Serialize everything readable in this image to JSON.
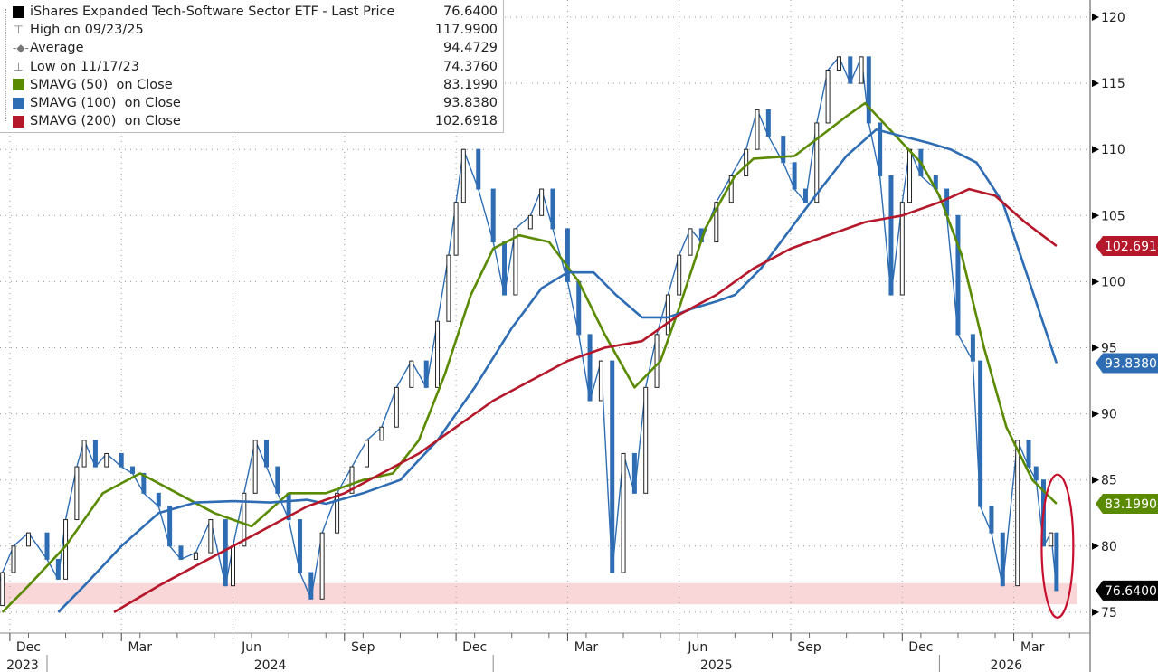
{
  "legend": {
    "rows": [
      {
        "label": "iShares Expanded Tech-Software Sector ETF - Last Price",
        "value": "76.6400",
        "symbol": "square",
        "color": "#000000"
      },
      {
        "label": "High on 09/23/25",
        "value": "117.9900",
        "symbol": "high-marker",
        "color": "#777777"
      },
      {
        "label": "Average",
        "value": "94.4729",
        "symbol": "average-marker",
        "color": "#777777"
      },
      {
        "label": "Low on 11/17/23",
        "value": "74.3760",
        "symbol": "low-marker",
        "color": "#777777"
      },
      {
        "label": "SMAVG (50)  on Close",
        "value": "83.1990",
        "symbol": "square",
        "color": "#5a8a00"
      },
      {
        "label": "SMAVG (100)  on Close",
        "value": "93.8380",
        "symbol": "square",
        "color": "#2e6db4"
      },
      {
        "label": "SMAVG (200)  on Close",
        "value": "102.6918",
        "symbol": "square",
        "color": "#b5172b"
      }
    ]
  },
  "chart_data": {
    "type": "line",
    "title": "iShares Expanded Tech-Software Sector ETF - Last Price",
    "x_unit": "months since Jan 2024",
    "ylim": [
      74,
      122
    ],
    "yticks": [
      75,
      80,
      85,
      90,
      95,
      100,
      105,
      110,
      115,
      120
    ],
    "xticks": [
      {
        "t": -0.5,
        "label": "Dec"
      },
      {
        "t": 2.5,
        "label": "Mar"
      },
      {
        "t": 5.5,
        "label": "Jun"
      },
      {
        "t": 8.5,
        "label": "Sep"
      },
      {
        "t": 11.5,
        "label": "Dec"
      },
      {
        "t": 14.5,
        "label": "Mar"
      },
      {
        "t": 17.5,
        "label": "Jun"
      },
      {
        "t": 20.5,
        "label": "Sep"
      },
      {
        "t": 23.5,
        "label": "Dec"
      },
      {
        "t": 26.5,
        "label": "Mar"
      }
    ],
    "years": [
      {
        "label": "2023",
        "start": -1.5,
        "end": 0
      },
      {
        "label": "2024",
        "start": 0,
        "end": 12
      },
      {
        "label": "2025",
        "start": 12,
        "end": 24
      },
      {
        "label": "2026",
        "start": 24,
        "end": 27.6
      }
    ],
    "grid": true,
    "legend_position": "top-left",
    "highlight_band": [
      75.6,
      77.2
    ],
    "annotation_ellipse": {
      "t_range": [
        26.75,
        27.6
      ],
      "y_range": [
        75,
        85
      ]
    },
    "series": [
      {
        "name": "Last Price",
        "color": "#2e6db4",
        "x": [
          -1.5,
          -1.2,
          -0.9,
          -0.5,
          0,
          0.3,
          0.5,
          0.8,
          1.0,
          1.3,
          1.6,
          2.0,
          2.3,
          2.6,
          3.0,
          3.3,
          3.6,
          4.0,
          4.4,
          4.8,
          5.0,
          5.3,
          5.6,
          5.9,
          6.2,
          6.5,
          6.8,
          7.1,
          7.4,
          7.8,
          8.2,
          8.6,
          9.0,
          9.4,
          9.8,
          10.2,
          10.5,
          10.8,
          11.0,
          11.2,
          11.6,
          12.0,
          12.3,
          12.6,
          13.0,
          13.3,
          13.6,
          14.0,
          14.3,
          14.6,
          14.9,
          15.2,
          15.5,
          15.8,
          16.1,
          16.4,
          16.7,
          17.0,
          17.3,
          17.6,
          18.0,
          18.4,
          18.8,
          19.1,
          19.4,
          19.8,
          20.1,
          20.4,
          20.7,
          21.0,
          21.3,
          21.6,
          21.9,
          22.1,
          22.4,
          22.7,
          23.0,
          23.2,
          23.5,
          23.9,
          24.2,
          24.5,
          24.9,
          25.1,
          25.4,
          25.7,
          26.1,
          26.4,
          26.6,
          26.8,
          27.0,
          27.15
        ],
        "values": [
          75.5,
          78,
          80,
          81,
          79,
          77.5,
          82,
          86,
          88,
          86,
          87,
          86,
          85.5,
          84,
          83,
          80,
          79,
          79.5,
          82,
          77,
          80,
          84,
          88,
          86,
          84,
          82,
          78,
          76,
          81,
          84,
          86,
          88,
          89,
          92,
          94,
          92,
          97,
          102,
          106,
          110,
          107,
          103,
          99,
          104,
          105,
          107,
          104,
          100,
          96,
          91,
          94,
          78,
          87,
          84,
          92,
          96,
          99,
          102,
          104,
          103,
          106,
          108,
          110,
          113,
          111,
          109,
          107,
          106,
          112,
          116,
          117,
          115,
          117,
          112,
          108,
          99,
          106,
          110,
          108,
          107,
          105,
          96,
          94,
          83,
          81,
          77,
          88,
          86,
          85,
          80,
          81,
          76.64
        ]
      },
      {
        "name": "SMAVG (50)",
        "color": "#5a8a00",
        "x": [
          -1.2,
          -0.5,
          0.5,
          1.5,
          2.5,
          3.5,
          4.5,
          5.5,
          6.5,
          7.5,
          8.5,
          9.3,
          10,
          10.7,
          11.4,
          12,
          12.7,
          13.5,
          14.3,
          15,
          15.8,
          16.5,
          17,
          17.7,
          18.5,
          19,
          20.1,
          20.8,
          21.5,
          22,
          22.5,
          23,
          23.5,
          24,
          24.6,
          25.2,
          25.8,
          26.5,
          27.15
        ],
        "values": [
          75,
          77,
          80,
          84,
          85.5,
          84,
          82.5,
          81.5,
          84,
          84,
          85,
          85.5,
          88,
          93,
          99,
          102.5,
          103.5,
          103,
          100,
          96,
          92,
          94,
          98,
          104,
          108,
          109.3,
          109.5,
          111,
          112.5,
          113.5,
          112,
          110.5,
          109,
          106.5,
          102,
          95,
          89,
          85,
          83.199
        ]
      },
      {
        "name": "SMAVG (100)",
        "color": "#2e6db4",
        "x": [
          0.3,
          1,
          2,
          3,
          4,
          5,
          6,
          7,
          7.5,
          8.5,
          9.5,
          10.5,
          11.5,
          12.5,
          13.3,
          14,
          14.7,
          15.3,
          16,
          16.7,
          17.4,
          18,
          18.5,
          19.2,
          20,
          20.8,
          21.5,
          22.3,
          23,
          23.7,
          24.3,
          25,
          25.7,
          26.3,
          27.15
        ],
        "values": [
          75,
          77,
          80,
          82.5,
          83.3,
          83.4,
          83.3,
          83.5,
          83.2,
          84,
          85,
          88,
          92,
          96.5,
          99.5,
          100.7,
          100.7,
          99,
          97.3,
          97.3,
          98,
          98.5,
          99,
          101,
          104,
          107,
          109.5,
          111.5,
          111,
          110.5,
          110,
          109,
          106,
          101,
          93.838
        ]
      },
      {
        "name": "SMAVG (200)",
        "color": "#b5172b",
        "x": [
          1.8,
          3,
          4,
          5,
          6,
          7,
          8,
          9,
          10,
          11,
          12,
          13,
          14,
          15,
          16,
          17,
          18,
          19,
          20,
          21,
          22,
          23,
          24,
          24.8,
          25.5,
          26.3,
          27.15
        ],
        "values": [
          75,
          77,
          78.5,
          80,
          81.5,
          83,
          84,
          85.5,
          87,
          89,
          91,
          92.5,
          94,
          95,
          95.5,
          97.5,
          99,
          101,
          102.5,
          103.5,
          104.5,
          105,
          106,
          107,
          106.5,
          104.5,
          102.6918
        ]
      }
    ],
    "last_value_labels": [
      {
        "series": "SMAVG (200)",
        "text": "102.6918",
        "value": 102.6918,
        "color": "#b5172b"
      },
      {
        "series": "SMAVG (100)",
        "text": "93.8380",
        "value": 93.838,
        "color": "#2e6db4"
      },
      {
        "series": "SMAVG (50)",
        "text": "83.1990",
        "value": 83.199,
        "color": "#5a8a00"
      },
      {
        "series": "Last Price",
        "text": "76.6400",
        "value": 76.64,
        "color": "#000000"
      }
    ]
  }
}
